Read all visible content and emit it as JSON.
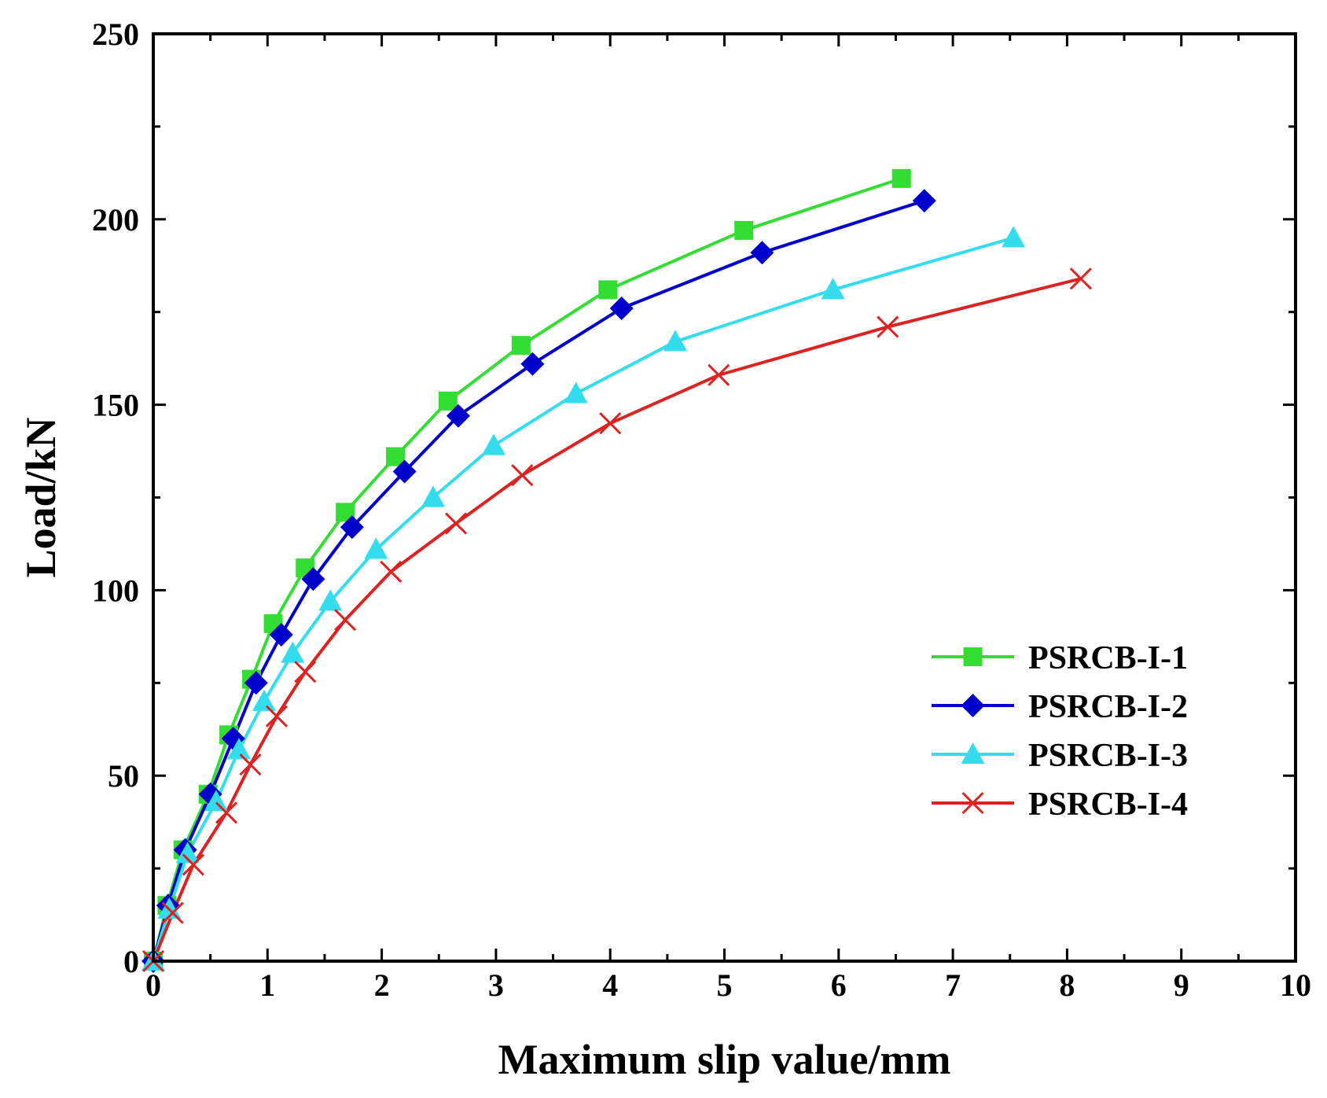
{
  "chart_data": {
    "type": "line",
    "title": "",
    "xlabel": "Maximum slip value/mm",
    "ylabel": "Load/kN",
    "xlim": [
      0,
      10
    ],
    "ylim": [
      0,
      250
    ],
    "xticks": [
      0,
      1,
      2,
      3,
      4,
      5,
      6,
      7,
      8,
      9,
      10
    ],
    "yticks": [
      0,
      50,
      100,
      150,
      200,
      250
    ],
    "xtick_labels": [
      "0",
      "1",
      "2",
      "3",
      "4",
      "5",
      "6",
      "7",
      "8",
      "9",
      "10"
    ],
    "ytick_labels": [
      "0",
      "50",
      "100",
      "150",
      "200",
      "250"
    ],
    "grid": false,
    "legend_position": "lower-right",
    "series": [
      {
        "name": "PSRCB-I-1",
        "color": "#33dd33",
        "marker": "square",
        "x": [
          0,
          0.12,
          0.26,
          0.48,
          0.66,
          0.86,
          1.05,
          1.33,
          1.68,
          2.12,
          2.58,
          3.22,
          3.98,
          5.17,
          6.55
        ],
        "y": [
          0,
          15,
          30,
          45,
          61,
          76,
          91,
          106,
          121,
          136,
          151,
          166,
          181,
          197,
          211
        ]
      },
      {
        "name": "PSRCB-I-2",
        "color": "#0000cc",
        "marker": "diamond",
        "x": [
          0,
          0.13,
          0.28,
          0.5,
          0.7,
          0.9,
          1.12,
          1.4,
          1.74,
          2.2,
          2.67,
          3.32,
          4.1,
          5.33,
          6.75
        ],
        "y": [
          0,
          15,
          30,
          45,
          60,
          75,
          88,
          103,
          117,
          132,
          147,
          161,
          176,
          191,
          205
        ]
      },
      {
        "name": "PSRCB-I-3",
        "color": "#33ddee",
        "marker": "triangle",
        "x": [
          0,
          0.14,
          0.3,
          0.55,
          0.75,
          0.97,
          1.22,
          1.55,
          1.95,
          2.45,
          2.98,
          3.7,
          4.57,
          5.95,
          7.53
        ],
        "y": [
          0,
          14,
          29,
          43,
          57,
          70,
          83,
          97,
          111,
          125,
          139,
          153,
          167,
          181,
          195
        ]
      },
      {
        "name": "PSRCB-I-4",
        "color": "#dd2222",
        "marker": "x",
        "x": [
          0,
          0.17,
          0.35,
          0.64,
          0.85,
          1.08,
          1.33,
          1.68,
          2.08,
          2.65,
          3.23,
          4.0,
          4.95,
          6.43,
          8.12
        ],
        "y": [
          0,
          13,
          26,
          40,
          53,
          66,
          78,
          92,
          105,
          118,
          131,
          145,
          158,
          171,
          184
        ]
      }
    ]
  }
}
